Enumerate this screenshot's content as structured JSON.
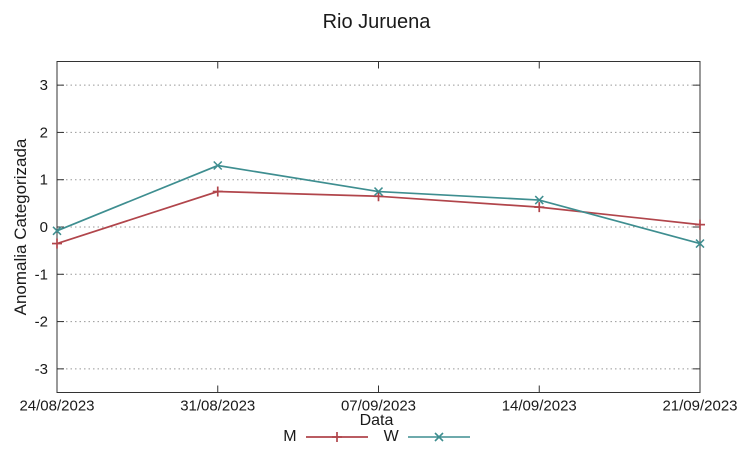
{
  "chart_data": {
    "type": "line",
    "title": "Rio Juruena",
    "xlabel": "Data",
    "ylabel": "Anomalia Categorizada",
    "categories": [
      "24/08/2023",
      "31/08/2023",
      "07/09/2023",
      "14/09/2023",
      "21/09/2023"
    ],
    "series": [
      {
        "name": "M",
        "marker": "plus",
        "color": "#b1454b",
        "values": [
          -0.35,
          0.75,
          0.65,
          0.42,
          0.05
        ]
      },
      {
        "name": "W",
        "marker": "cross",
        "color": "#3e8e90",
        "values": [
          -0.08,
          1.3,
          0.75,
          0.57,
          -0.35
        ]
      }
    ],
    "ylim": [
      -3.5,
      3.5
    ],
    "yticks": [
      3,
      2,
      1,
      0,
      -1,
      -2,
      -3
    ],
    "grid": "horizontal-dotted",
    "legend_position": "bottom-center"
  },
  "colors": {
    "background": "#ffffff",
    "border": "#333333",
    "gridline": "#999999",
    "text": "#1a1a1a",
    "series_m": "#b1454b",
    "series_w": "#3e8e90"
  }
}
